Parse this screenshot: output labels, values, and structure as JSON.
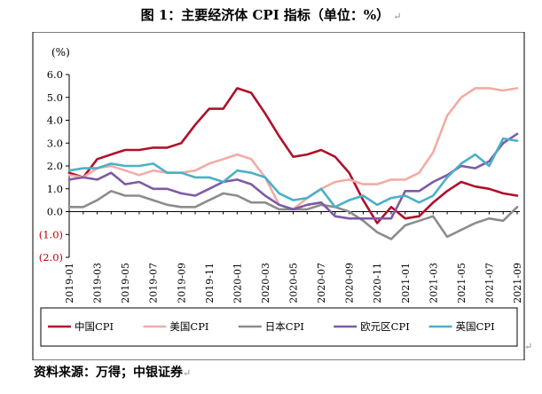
{
  "title": "图 1：主要经济体 CPI 指标（单位：%）",
  "source": "资料来源：万得；中银证券",
  "chart_data": {
    "type": "line",
    "unit_label": "(%)",
    "ylim": [
      -2.0,
      6.0
    ],
    "yticks": [
      -2.0,
      -1.0,
      0.0,
      1.0,
      2.0,
      3.0,
      4.0,
      5.0,
      6.0
    ],
    "ytick_labels": [
      "(2.0)",
      "(1.0)",
      "0.0",
      "1.0",
      "2.0",
      "3.0",
      "4.0",
      "5.0",
      "6.0"
    ],
    "xtick_labels": [
      "2019-01",
      "2019-03",
      "2019-05",
      "2019-07",
      "2019-09",
      "2019-11",
      "2020-01",
      "2020-03",
      "2020-05",
      "2020-07",
      "2020-09",
      "2020-11",
      "2021-01",
      "2021-03",
      "2021-05",
      "2021-07",
      "2021-09"
    ],
    "x": [
      "2019-01",
      "2019-02",
      "2019-03",
      "2019-04",
      "2019-05",
      "2019-06",
      "2019-07",
      "2019-08",
      "2019-09",
      "2019-10",
      "2019-11",
      "2019-12",
      "2020-01",
      "2020-02",
      "2020-03",
      "2020-04",
      "2020-05",
      "2020-06",
      "2020-07",
      "2020-08",
      "2020-09",
      "2020-10",
      "2020-11",
      "2020-12",
      "2021-01",
      "2021-02",
      "2021-03",
      "2021-04",
      "2021-05",
      "2021-06",
      "2021-07",
      "2021-08",
      "2021-09"
    ],
    "grid": false,
    "legend_position": "bottom",
    "series": [
      {
        "name": "中国CPI",
        "color": "#b0102a",
        "values": [
          1.7,
          1.5,
          2.3,
          2.5,
          2.7,
          2.7,
          2.8,
          2.8,
          3.0,
          3.8,
          4.5,
          4.5,
          5.4,
          5.2,
          4.3,
          3.3,
          2.4,
          2.5,
          2.7,
          2.4,
          1.7,
          0.5,
          -0.5,
          0.2,
          -0.3,
          -0.2,
          0.4,
          0.9,
          1.3,
          1.1,
          1.0,
          0.8,
          0.7
        ]
      },
      {
        "name": "美国CPI",
        "color": "#f2aca4",
        "values": [
          1.6,
          1.5,
          1.9,
          2.0,
          1.8,
          1.6,
          1.8,
          1.7,
          1.7,
          1.8,
          2.1,
          2.3,
          2.5,
          2.3,
          1.5,
          0.3,
          0.1,
          0.6,
          1.0,
          1.3,
          1.4,
          1.2,
          1.2,
          1.4,
          1.4,
          1.7,
          2.6,
          4.2,
          5.0,
          5.4,
          5.4,
          5.3,
          5.4
        ]
      },
      {
        "name": "日本CPI",
        "color": "#8c8c8c",
        "values": [
          0.2,
          0.2,
          0.5,
          0.9,
          0.7,
          0.7,
          0.5,
          0.3,
          0.2,
          0.2,
          0.5,
          0.8,
          0.7,
          0.4,
          0.4,
          0.1,
          0.1,
          0.1,
          0.3,
          0.2,
          0.0,
          -0.4,
          -0.9,
          -1.2,
          -0.6,
          -0.4,
          -0.2,
          -1.1,
          -0.8,
          -0.5,
          -0.3,
          -0.4,
          0.2
        ]
      },
      {
        "name": "欧元区CPI",
        "color": "#7e5aa6",
        "values": [
          1.4,
          1.5,
          1.4,
          1.7,
          1.2,
          1.3,
          1.0,
          1.0,
          0.8,
          0.7,
          1.0,
          1.3,
          1.4,
          1.2,
          0.7,
          0.3,
          0.1,
          0.3,
          0.4,
          -0.2,
          -0.3,
          -0.3,
          -0.3,
          -0.3,
          0.9,
          0.9,
          1.3,
          1.6,
          2.0,
          1.9,
          2.2,
          3.0,
          3.4
        ]
      },
      {
        "name": "英国CPI",
        "color": "#4bb0c8",
        "values": [
          1.8,
          1.9,
          1.9,
          2.1,
          2.0,
          2.0,
          2.1,
          1.7,
          1.7,
          1.5,
          1.5,
          1.3,
          1.8,
          1.7,
          1.5,
          0.8,
          0.5,
          0.6,
          1.0,
          0.2,
          0.5,
          0.7,
          0.3,
          0.6,
          0.7,
          0.4,
          0.7,
          1.5,
          2.1,
          2.5,
          2.0,
          3.2,
          3.1
        ]
      }
    ]
  }
}
